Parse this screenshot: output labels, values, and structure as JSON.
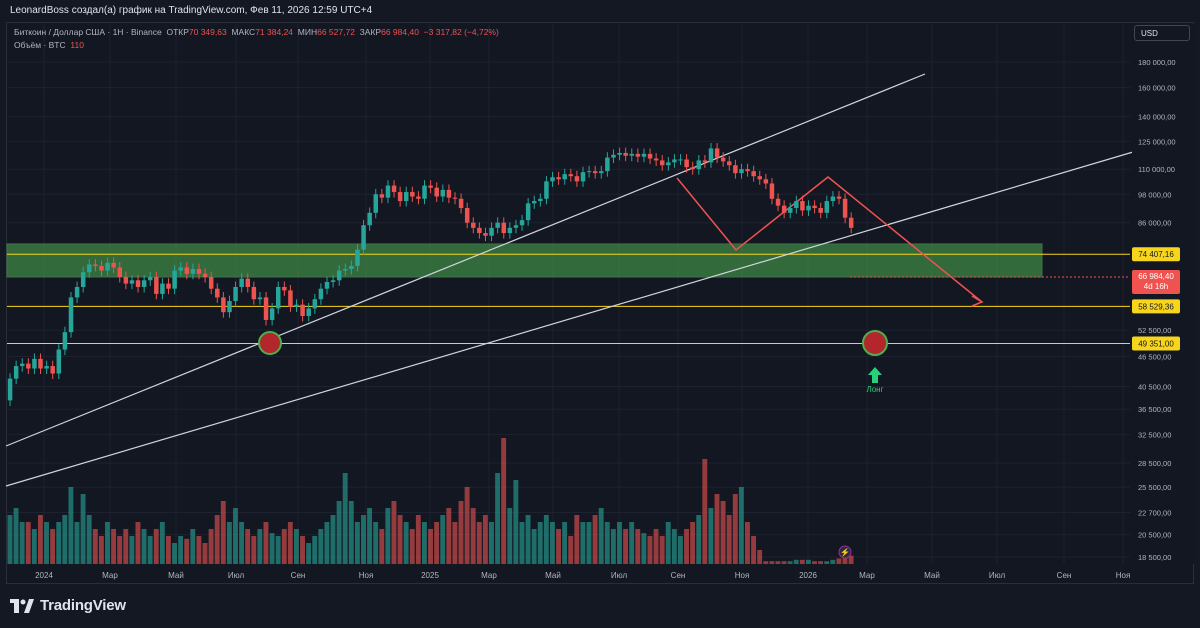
{
  "window_title": "LeonardBoss создал(а) график на TradingView.com, Фев 11, 2026 12:59 UTC+4",
  "legend": {
    "symbol": "Биткоин / Доллар США · 1Н · Binance",
    "open_label": "ОТКР",
    "open": "70 349,63",
    "high_label": "МАКС",
    "high": "71 384,24",
    "low_label": "МИН",
    "low": "66 527,72",
    "close_label": "ЗАКР",
    "close": "66 984,40",
    "change": "−3 317,82 (−4,72%)",
    "volume_label": "Объём · BTC",
    "volume": "110"
  },
  "currency_button": "USD",
  "brand": "TradingView",
  "colors": {
    "up": "#26a69a",
    "down": "#ef5350",
    "zone": "#4caf50",
    "level": "#f7d51d",
    "background": "#131722"
  },
  "chart_data": {
    "type": "candlestick",
    "y_scale": "log",
    "y_ticks": [
      "180 000,00",
      "160 000,00",
      "140 000,00",
      "125 000,00",
      "110 000,00",
      "98 000,00",
      "86 000,00",
      "52 500,00",
      "46 500,00",
      "40 500,00",
      "36 500,00",
      "32 500,00",
      "28 500,00",
      "25 500,00",
      "22 700,00",
      "20 500,00",
      "18 500,00"
    ],
    "y_tick_values": [
      180000,
      160000,
      140000,
      125000,
      110000,
      98000,
      86000,
      52500,
      46500,
      40500,
      36500,
      32500,
      28500,
      25500,
      22700,
      20500,
      18500
    ],
    "x_ticks": [
      "2024",
      "Мар",
      "Май",
      "Июл",
      "Сен",
      "Ноя",
      "2025",
      "Мар",
      "Май",
      "Июл",
      "Сен",
      "Ноя",
      "2026",
      "Мар",
      "Май",
      "Июл",
      "Сен",
      "Ноя"
    ],
    "price_labels": [
      {
        "text": "74 407,16",
        "value": 74407.16,
        "color": "#f7d51d"
      },
      {
        "text": "66 984,40",
        "value": 66984.4,
        "color": "#ef5350",
        "sub": "4d 16h"
      },
      {
        "text": "58 529,36",
        "value": 58529.36,
        "color": "#f7d51d"
      },
      {
        "text": "49 351,00",
        "value": 49351.0,
        "color": "#f7d51d"
      }
    ],
    "zone": {
      "low": 67000,
      "high": 78000
    },
    "closes": [
      42000,
      44500,
      45000,
      44000,
      46000,
      44000,
      44500,
      43000,
      48000,
      52000,
      61000,
      64000,
      68500,
      71000,
      70500,
      69000,
      71500,
      70000,
      67000,
      65000,
      66000,
      64000,
      66000,
      67000,
      62000,
      65000,
      63500,
      69000,
      70000,
      68000,
      69500,
      68000,
      67000,
      63500,
      61000,
      57000,
      60000,
      64000,
      66500,
      64000,
      60500,
      61000,
      55000,
      58000,
      64000,
      63000,
      58500,
      59000,
      56000,
      58000,
      60500,
      63500,
      65500,
      66000,
      69000,
      69500,
      70500,
      76000,
      85000,
      90000,
      98000,
      96500,
      102000,
      99000,
      95000,
      99000,
      97000,
      96000,
      102000,
      101000,
      97000,
      100000,
      96500,
      96000,
      92000,
      86000,
      84000,
      82000,
      81000,
      84000,
      86000,
      82000,
      84000,
      85000,
      87000,
      94000,
      95000,
      96000,
      104000,
      106000,
      105000,
      107500,
      106500,
      104000,
      108500,
      109000,
      108000,
      109000,
      116000,
      117500,
      118500,
      117000,
      118000,
      116500,
      118000,
      115500,
      114500,
      112000,
      113500,
      115000,
      115000,
      111000,
      110000,
      114500,
      113500,
      121000,
      116000,
      114000,
      112000,
      108000,
      110000,
      109000,
      106500,
      105000,
      103000,
      96000,
      93000,
      90000,
      92000,
      95000,
      91000,
      93000,
      92000,
      90000,
      95000,
      97000,
      96000,
      88000,
      84000,
      77000,
      70000,
      67000
    ],
    "opens": [
      38000,
      42000,
      44500,
      45000,
      44000,
      46000,
      44000,
      44500,
      43000,
      48000,
      52000,
      61000,
      64000,
      68500,
      71000,
      70500,
      69000,
      71500,
      70000,
      67000,
      65000,
      66000,
      64000,
      66000,
      67000,
      62000,
      65000,
      63500,
      69000,
      70000,
      68000,
      69500,
      68000,
      67000,
      63500,
      61000,
      57000,
      60000,
      64000,
      66500,
      64000,
      60500,
      61000,
      55000,
      58000,
      64000,
      63000,
      58500,
      59000,
      56000,
      58000,
      60500,
      63500,
      65500,
      66000,
      69000,
      69500,
      70500,
      76000,
      85000,
      90000,
      98000,
      96500,
      102000,
      99000,
      95000,
      99000,
      97000,
      96000,
      102000,
      101000,
      97000,
      100000,
      96500,
      96000,
      92000,
      86000,
      84000,
      82000,
      81000,
      84000,
      86000,
      82000,
      84000,
      85000,
      87000,
      94000,
      95000,
      96000,
      104000,
      106000,
      105000,
      107500,
      106500,
      104000,
      108500,
      109000,
      108000,
      109000,
      116000,
      117500,
      118500,
      117000,
      118000,
      116500,
      118000,
      115500,
      114500,
      112000,
      113500,
      115000,
      115000,
      111000,
      110000,
      114500,
      113500,
      121000,
      116000,
      114000,
      112000,
      108000,
      110000,
      109000,
      106500,
      105000,
      103000,
      96000,
      93000,
      90000,
      92000,
      95000,
      91000,
      93000,
      92000,
      90000,
      95000,
      97000,
      96000,
      88000,
      84000,
      77000,
      70000
    ],
    "volume_max": 1.0,
    "volumes": [
      0.35,
      0.4,
      0.3,
      0.3,
      0.25,
      0.35,
      0.3,
      0.25,
      0.3,
      0.35,
      0.55,
      0.3,
      0.5,
      0.35,
      0.25,
      0.2,
      0.3,
      0.25,
      0.2,
      0.25,
      0.2,
      0.3,
      0.25,
      0.2,
      0.25,
      0.3,
      0.2,
      0.15,
      0.2,
      0.18,
      0.25,
      0.2,
      0.15,
      0.25,
      0.35,
      0.45,
      0.3,
      0.4,
      0.3,
      0.25,
      0.2,
      0.25,
      0.3,
      0.22,
      0.2,
      0.25,
      0.3,
      0.25,
      0.2,
      0.15,
      0.2,
      0.25,
      0.3,
      0.35,
      0.45,
      0.65,
      0.45,
      0.3,
      0.35,
      0.4,
      0.3,
      0.25,
      0.4,
      0.45,
      0.35,
      0.3,
      0.25,
      0.35,
      0.3,
      0.25,
      0.3,
      0.35,
      0.4,
      0.3,
      0.45,
      0.55,
      0.4,
      0.3,
      0.35,
      0.3,
      0.65,
      0.9,
      0.4,
      0.6,
      0.3,
      0.35,
      0.25,
      0.3,
      0.35,
      0.3,
      0.25,
      0.3,
      0.2,
      0.35,
      0.3,
      0.3,
      0.35,
      0.4,
      0.3,
      0.25,
      0.3,
      0.25,
      0.3,
      0.25,
      0.22,
      0.2,
      0.25,
      0.2,
      0.3,
      0.25,
      0.2,
      0.25,
      0.3,
      0.35,
      0.75,
      0.4,
      0.5,
      0.45,
      0.35,
      0.5,
      0.55,
      0.3,
      0.2,
      0.1,
      0.02,
      0.02,
      0.02,
      0.02,
      0.02,
      0.03,
      0.03,
      0.03,
      0.02,
      0.02,
      0.02,
      0.03,
      0.04,
      0.05,
      0.06,
      0.08,
      0.1,
      0.12
    ]
  },
  "annotations": {
    "long_label": "Лонг"
  }
}
